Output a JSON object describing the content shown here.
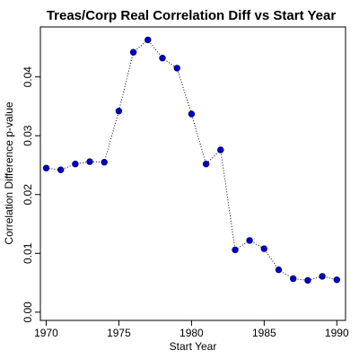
{
  "chart_data": {
    "type": "line",
    "title": "Treas/Corp Real Correlation Diff vs Start Year",
    "xlabel": "Start Year",
    "ylabel": "Correlation Difference p-value",
    "xlim": [
      1969.6,
      1990.6
    ],
    "ylim": [
      -0.0014,
      0.0485
    ],
    "x_ticks": [
      1970,
      1975,
      1980,
      1985,
      1990
    ],
    "y_ticks": [
      0.0,
      0.01,
      0.02,
      0.03,
      0.04
    ],
    "y_tick_labels": [
      "0.00",
      "0.01",
      "0.02",
      "0.03",
      "0.04"
    ],
    "grid": false,
    "point_color": "#0000cc",
    "line_style": "dotted",
    "x": [
      1970,
      1971,
      1972,
      1973,
      1974,
      1975,
      1976,
      1977,
      1978,
      1979,
      1980,
      1981,
      1982,
      1983,
      1984,
      1985,
      1986,
      1987,
      1988,
      1989,
      1990
    ],
    "y": [
      0.0245,
      0.0242,
      0.0252,
      0.0256,
      0.0255,
      0.0342,
      0.0442,
      0.0463,
      0.0432,
      0.0415,
      0.0337,
      0.0252,
      0.0276,
      0.0106,
      0.0122,
      0.0108,
      0.0072,
      0.0057,
      0.0054,
      0.0061,
      0.0055
    ]
  }
}
